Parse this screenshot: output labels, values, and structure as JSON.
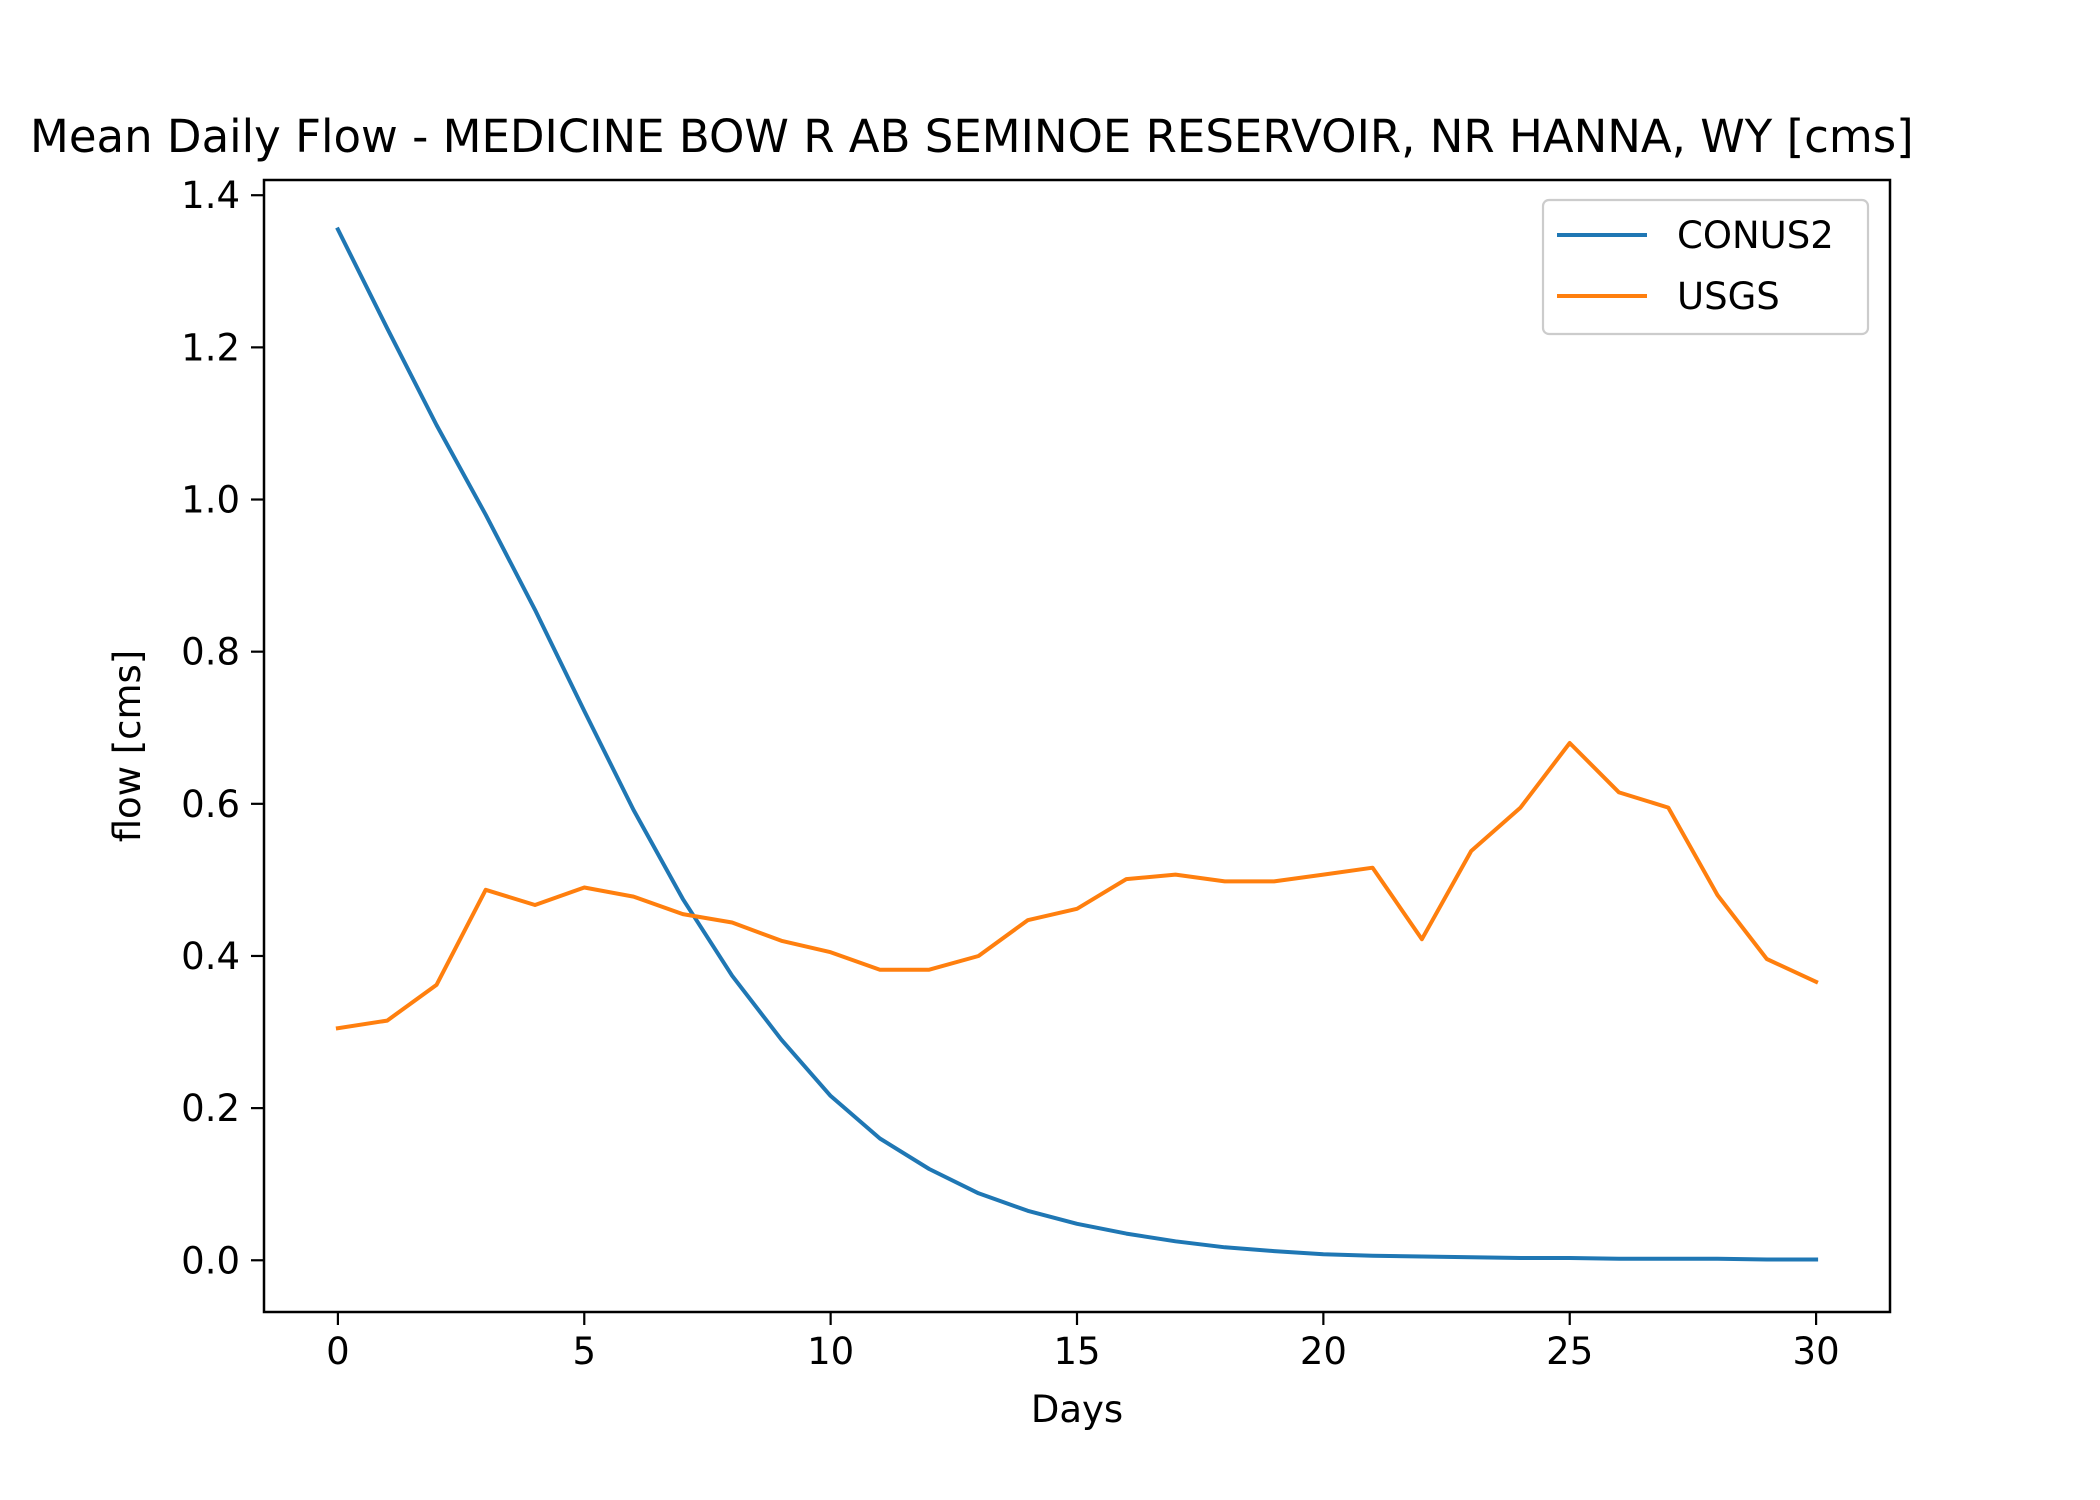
{
  "chart_data": {
    "type": "line",
    "title": "Mean Daily Flow - MEDICINE BOW R AB SEMINOE RESERVOIR, NR HANNA, WY [cms]",
    "xlabel": "Days",
    "ylabel": "flow [cms]",
    "xlim": [
      -1.5,
      31.5
    ],
    "ylim": [
      -0.068,
      1.42
    ],
    "x_ticks": [
      0,
      5,
      10,
      15,
      20,
      25,
      30
    ],
    "x_tick_labels": [
      "0",
      "5",
      "10",
      "15",
      "20",
      "25",
      "30"
    ],
    "y_ticks": [
      0.0,
      0.2,
      0.4,
      0.6,
      0.8,
      1.0,
      1.2,
      1.4
    ],
    "y_tick_labels": [
      "0.0",
      "0.2",
      "0.4",
      "0.6",
      "0.8",
      "1.0",
      "1.2",
      "1.4"
    ],
    "grid": false,
    "legend_position": "top-right",
    "x": [
      0,
      1,
      2,
      3,
      4,
      5,
      6,
      7,
      8,
      9,
      10,
      11,
      12,
      13,
      14,
      15,
      16,
      17,
      18,
      19,
      20,
      21,
      22,
      23,
      24,
      25,
      26,
      27,
      28,
      29,
      30
    ],
    "series": [
      {
        "name": "CONUS2",
        "color": "#1f77b4",
        "values": [
          1.355,
          1.225,
          1.098,
          0.98,
          0.855,
          0.722,
          0.592,
          0.475,
          0.374,
          0.29,
          0.216,
          0.16,
          0.12,
          0.088,
          0.065,
          0.048,
          0.035,
          0.025,
          0.017,
          0.012,
          0.008,
          0.006,
          0.005,
          0.004,
          0.003,
          0.003,
          0.002,
          0.002,
          0.002,
          0.001,
          0.001
        ]
      },
      {
        "name": "USGS",
        "color": "#ff7f0e",
        "values": [
          0.305,
          0.315,
          0.362,
          0.487,
          0.467,
          0.49,
          0.478,
          0.455,
          0.444,
          0.42,
          0.405,
          0.382,
          0.382,
          0.4,
          0.447,
          0.462,
          0.501,
          0.507,
          0.498,
          0.498,
          0.507,
          0.516,
          0.422,
          0.538,
          0.595,
          0.68,
          0.615,
          0.595,
          0.48,
          0.396,
          0.366
        ]
      }
    ]
  }
}
